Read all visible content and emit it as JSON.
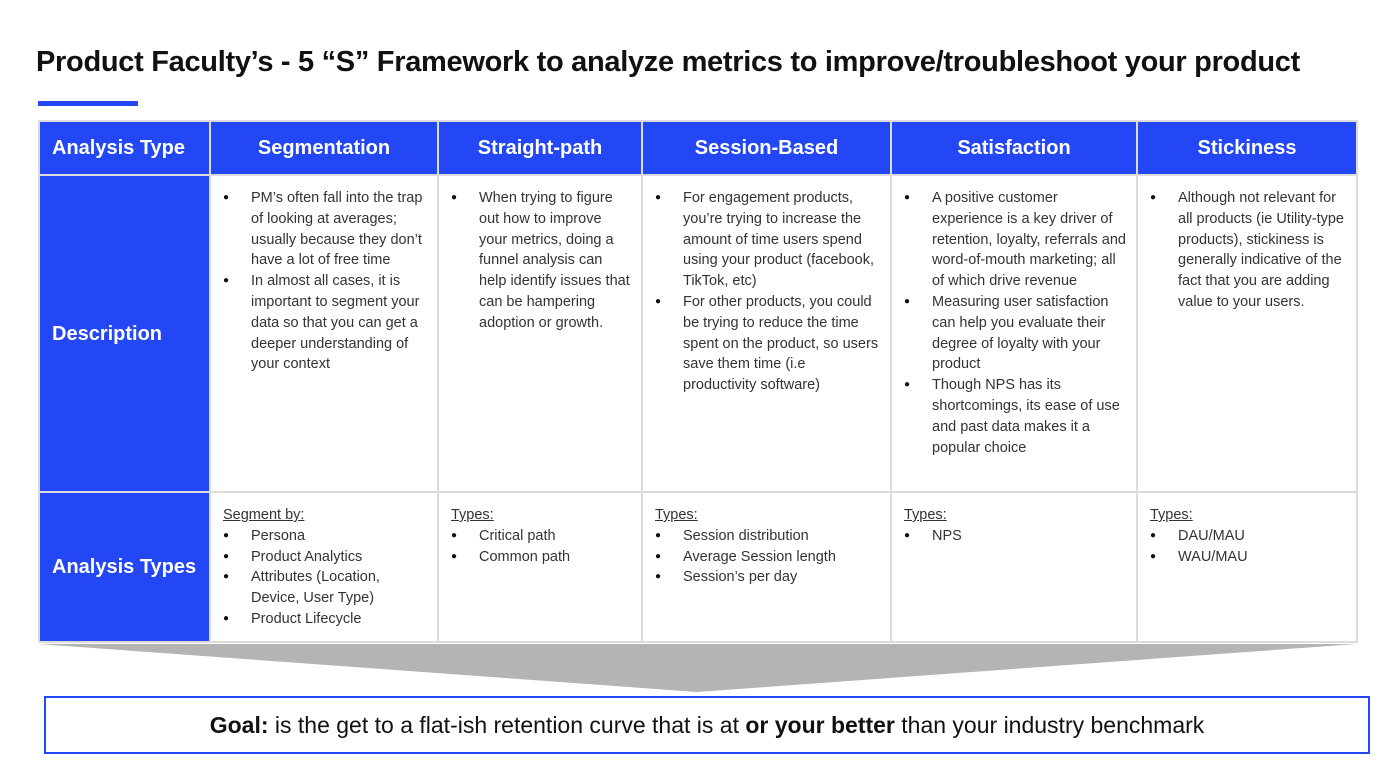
{
  "title": "Product Faculty’s - 5 “S” Framework to analyze metrics to improve/troubleshoot your product",
  "colors": {
    "accent": "#2347f5",
    "arrow": "#b4b4b4",
    "border": "#dcdcdc"
  },
  "table": {
    "headers": [
      "Analysis Type",
      "Segmentation",
      "Straight-path",
      "Session-Based",
      "Satisfaction",
      "Stickiness"
    ],
    "description_label": "Description",
    "descriptions": [
      [
        "PM’s often fall into the trap of looking at averages; usually because they don’t have a lot of free time",
        "In almost all cases, it is important to segment your data so that you can get a deeper understanding of your context"
      ],
      [
        "When trying to figure out how to improve your metrics, doing a funnel analysis can help identify issues that can be hampering adoption or growth."
      ],
      [
        "For engagement products, you’re trying to increase the amount of time users spend using your product (facebook, TikTok, etc)",
        "For other products, you could be trying to reduce the time spent on the product, so users save them time (i.e productivity software)"
      ],
      [
        "A positive customer experience is a key driver of retention, loyalty, referrals and word-of-mouth marketing; all of which drive revenue",
        "Measuring user satisfaction can help you evaluate their degree of loyalty with your product",
        "Though NPS has its shortcomings, its ease of use and past data makes it a popular choice"
      ],
      [
        "Although not relevant for all products (ie Utility-type products), stickiness is generally indicative of the fact that you are adding value to your users."
      ]
    ],
    "types_label": "Analysis Types",
    "types": [
      {
        "heading": "Segment by:",
        "items": [
          "Persona",
          "Product Analytics",
          "Attributes (Location, Device, User Type)",
          "Product Lifecycle"
        ]
      },
      {
        "heading": "Types:",
        "items": [
          "Critical path",
          "Common path"
        ]
      },
      {
        "heading": "Types:",
        "items": [
          "Session distribution",
          "Average Session length",
          "Session’s per day"
        ]
      },
      {
        "heading": "Types:",
        "items": [
          "NPS"
        ]
      },
      {
        "heading": "Types:",
        "items": [
          "DAU/MAU",
          "WAU/MAU"
        ]
      }
    ]
  },
  "goal": {
    "label": "Goal:",
    "text1": " is the get to a flat-ish retention curve that is at ",
    "bold2": "or your better",
    "text2": " than your industry benchmark"
  }
}
